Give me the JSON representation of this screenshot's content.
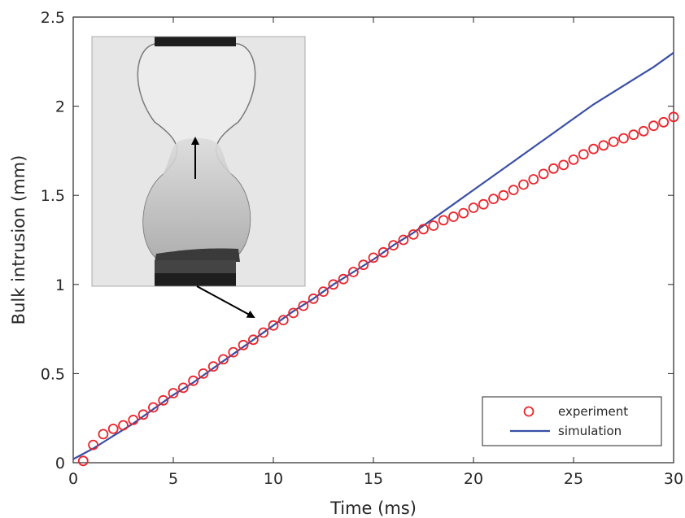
{
  "chart_data": {
    "type": "scatter",
    "title": "",
    "xlabel": "Time (ms)",
    "ylabel": "Bulk intrusion (mm)",
    "xlim": [
      0,
      30
    ],
    "ylim": [
      0,
      2.5
    ],
    "xticks": [
      0,
      5,
      10,
      15,
      20,
      25,
      30
    ],
    "yticks": [
      0,
      0.5,
      1,
      1.5,
      2,
      2.5
    ],
    "xtick_labels": [
      "0",
      "5",
      "10",
      "15",
      "20",
      "25",
      "30"
    ],
    "ytick_labels": [
      "0",
      "0.5",
      "1",
      "1.5",
      "2",
      "2.5"
    ],
    "grid": false,
    "legend_position": "bottom-right",
    "series": [
      {
        "name": "experiment",
        "style": "markers",
        "marker": "open-circle",
        "color": "#e8262b",
        "x": [
          0.5,
          1.0,
          1.5,
          2.0,
          2.5,
          3.0,
          3.5,
          4.0,
          4.5,
          5.0,
          5.5,
          6.0,
          6.5,
          7.0,
          7.5,
          8.0,
          8.5,
          9.0,
          9.5,
          10.0,
          10.5,
          11.0,
          11.5,
          12.0,
          12.5,
          13.0,
          13.5,
          14.0,
          14.5,
          15.0,
          15.5,
          16.0,
          16.5,
          17.0,
          17.5,
          18.0,
          18.5,
          19.0,
          19.5,
          20.0,
          20.5,
          21.0,
          21.5,
          22.0,
          22.5,
          23.0,
          23.5,
          24.0,
          24.5,
          25.0,
          25.5,
          26.0,
          26.5,
          27.0,
          27.5,
          28.0,
          28.5,
          29.0,
          29.5,
          30.0
        ],
        "y": [
          0.01,
          0.1,
          0.16,
          0.19,
          0.21,
          0.24,
          0.27,
          0.31,
          0.35,
          0.39,
          0.42,
          0.46,
          0.5,
          0.54,
          0.58,
          0.62,
          0.66,
          0.69,
          0.73,
          0.77,
          0.8,
          0.84,
          0.88,
          0.92,
          0.96,
          1.0,
          1.03,
          1.07,
          1.11,
          1.15,
          1.18,
          1.22,
          1.25,
          1.28,
          1.31,
          1.33,
          1.36,
          1.38,
          1.4,
          1.43,
          1.45,
          1.48,
          1.5,
          1.53,
          1.56,
          1.59,
          1.62,
          1.65,
          1.67,
          1.7,
          1.73,
          1.76,
          1.78,
          1.8,
          1.82,
          1.84,
          1.86,
          1.89,
          1.91,
          1.94
        ]
      },
      {
        "name": "simulation",
        "style": "line",
        "color": "#3a4fa6",
        "x": [
          0,
          1,
          2,
          3,
          4,
          5,
          6,
          7,
          8,
          9,
          10,
          11,
          12,
          13,
          14,
          15,
          16,
          17,
          18,
          19,
          20,
          21,
          22,
          23,
          24,
          25,
          26,
          27,
          28,
          29,
          30
        ],
        "y": [
          0.02,
          0.08,
          0.15,
          0.22,
          0.3,
          0.38,
          0.45,
          0.53,
          0.61,
          0.69,
          0.77,
          0.85,
          0.92,
          1.0,
          1.07,
          1.14,
          1.22,
          1.29,
          1.37,
          1.45,
          1.53,
          1.61,
          1.69,
          1.77,
          1.85,
          1.93,
          2.01,
          2.08,
          2.15,
          2.22,
          2.3
        ]
      }
    ]
  },
  "inset": {
    "image": "hourglass-intrusion-photo",
    "annotation_arrow": "vertical-up-arrow",
    "pointer_arrow": "diagonal-pointer-arrow"
  },
  "colors": {
    "axes": "#262626",
    "experiment": "#e8262b",
    "simulation": "#3a4fa6"
  }
}
